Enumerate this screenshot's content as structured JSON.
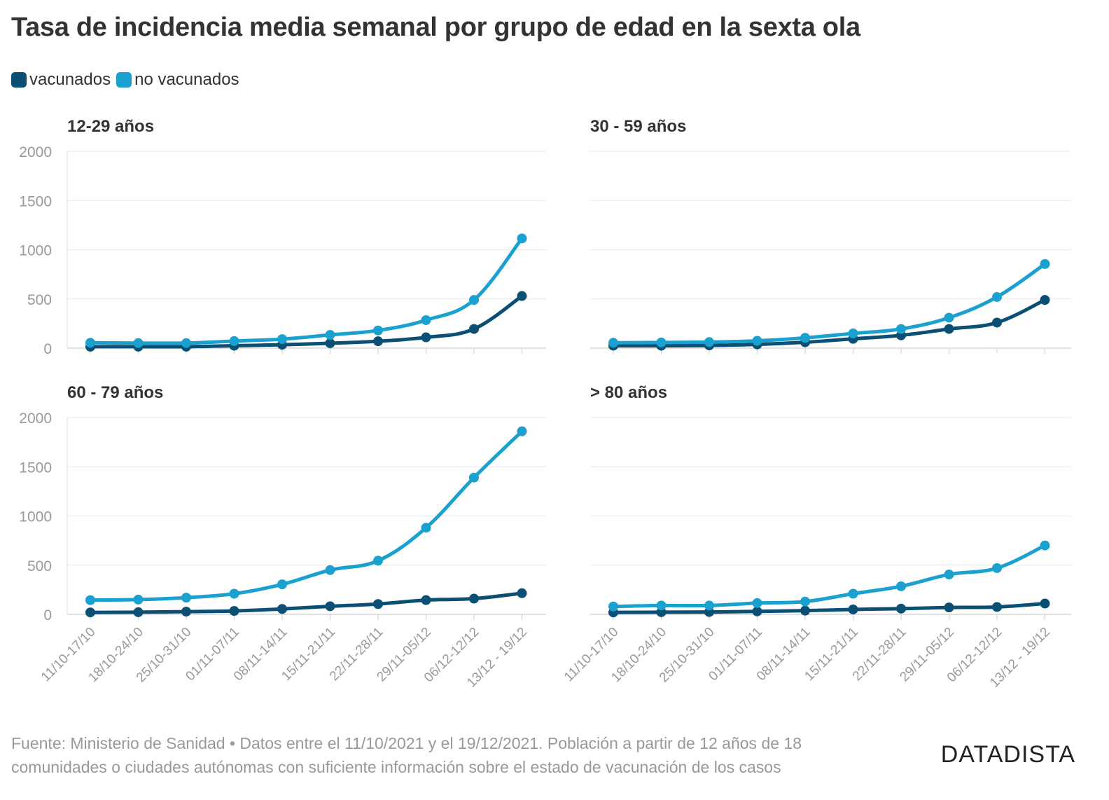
{
  "title": "Tasa de incidencia media semanal por grupo de edad en la sexta ola",
  "legend": [
    {
      "name": "vacunados",
      "color": "#0b4f75"
    },
    {
      "name": "no vacunados",
      "color": "#1aa1cf"
    }
  ],
  "footer": {
    "line1": "Fuente: Ministerio de Sanidad • Datos entre el 11/10/2021 y el 19/12/2021. Población a partir de 12 años de 18",
    "line2": "comunidades o ciudades autónomas con suficiente información sobre el estado de vacunación de los casos"
  },
  "brand": "DATADISTA",
  "chart_data": [
    {
      "type": "line",
      "title": "12-29 años",
      "categories": [
        "11/10-17/10",
        "18/10-24/10",
        "25/10-31/10",
        "01/11-07/11",
        "08/11-14/11",
        "15/11-21/11",
        "22/11-28/11",
        "29/11-05/12",
        "06/12-12/12",
        "13/12 - 19/12"
      ],
      "yticks": [
        0,
        500,
        1000,
        1500,
        2000
      ],
      "ylim": [
        0,
        2000
      ],
      "series": [
        {
          "name": "vacunados",
          "values": [
            15,
            15,
            15,
            25,
            35,
            50,
            70,
            110,
            195,
            530
          ]
        },
        {
          "name": "no vacunados",
          "values": [
            55,
            52,
            52,
            72,
            92,
            135,
            180,
            285,
            490,
            1115
          ]
        }
      ]
    },
    {
      "type": "line",
      "title": "30 - 59 años",
      "categories": [
        "11/10-17/10",
        "18/10-24/10",
        "25/10-31/10",
        "01/11-07/11",
        "08/11-14/11",
        "15/11-21/11",
        "22/11-28/11",
        "29/11-05/12",
        "06/12-12/12",
        "13/12 - 19/12"
      ],
      "yticks": [
        0,
        500,
        1000,
        1500,
        2000
      ],
      "ylim": [
        0,
        2000
      ],
      "series": [
        {
          "name": "vacunados",
          "values": [
            25,
            25,
            28,
            38,
            60,
            95,
            130,
            195,
            260,
            490
          ]
        },
        {
          "name": "no vacunados",
          "values": [
            55,
            58,
            62,
            75,
            105,
            150,
            195,
            310,
            520,
            855
          ]
        }
      ]
    },
    {
      "type": "line",
      "title": "60 - 79 años",
      "categories": [
        "11/10-17/10",
        "18/10-24/10",
        "25/10-31/10",
        "01/11-07/11",
        "08/11-14/11",
        "15/11-21/11",
        "22/11-28/11",
        "29/11-05/12",
        "06/12-12/12",
        "13/12 - 19/12"
      ],
      "yticks": [
        0,
        500,
        1000,
        1500,
        2000
      ],
      "ylim": [
        0,
        2000
      ],
      "series": [
        {
          "name": "vacunados",
          "values": [
            20,
            22,
            28,
            35,
            55,
            82,
            105,
            145,
            160,
            215
          ]
        },
        {
          "name": "no vacunados",
          "values": [
            145,
            150,
            170,
            210,
            305,
            450,
            545,
            880,
            1390,
            1860
          ]
        }
      ]
    },
    {
      "type": "line",
      "title": "> 80 años",
      "categories": [
        "11/10-17/10",
        "18/10-24/10",
        "25/10-31/10",
        "01/11-07/11",
        "08/11-14/11",
        "15/11-21/11",
        "22/11-28/11",
        "29/11-05/12",
        "06/12-12/12",
        "13/12 - 19/12"
      ],
      "yticks": [
        0,
        500,
        1000,
        1500,
        2000
      ],
      "ylim": [
        0,
        2000
      ],
      "series": [
        {
          "name": "vacunados",
          "values": [
            20,
            22,
            24,
            30,
            38,
            50,
            58,
            70,
            75,
            110
          ]
        },
        {
          "name": "no vacunados",
          "values": [
            80,
            90,
            90,
            115,
            130,
            210,
            285,
            405,
            470,
            700
          ]
        }
      ]
    }
  ]
}
